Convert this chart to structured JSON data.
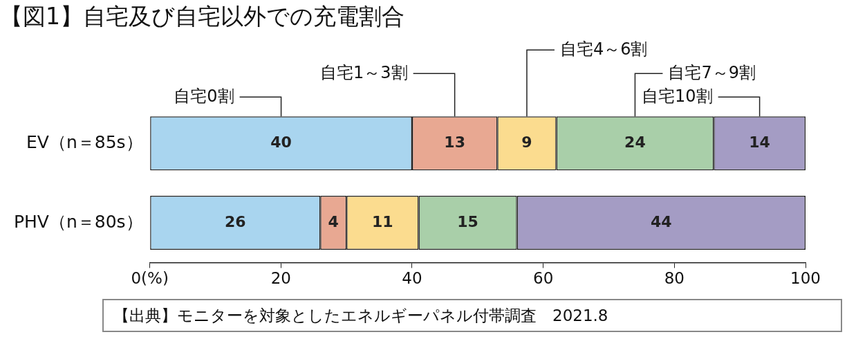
{
  "chart_data": {
    "type": "bar",
    "orientation": "horizontal",
    "stacked": true,
    "title": "【図1】自宅及び自宅以外での充電割合",
    "categories": [
      "EV（n＝85s）",
      "PHV（n＝80s）"
    ],
    "series": [
      {
        "name": "自宅0割",
        "color": "#a9d5ef",
        "values": [
          40,
          26
        ]
      },
      {
        "name": "自宅1～3割",
        "color": "#e8a892",
        "values": [
          13,
          4
        ]
      },
      {
        "name": "自宅4～6割",
        "color": "#fbdc8f",
        "values": [
          9,
          11
        ]
      },
      {
        "name": "自宅7～9割",
        "color": "#a9cfa9",
        "values": [
          24,
          15
        ]
      },
      {
        "name": "自宅10割",
        "color": "#a49cc4",
        "values": [
          14,
          44
        ]
      }
    ],
    "xlim": [
      0,
      100
    ],
    "xticks": [
      {
        "value": 0,
        "label": "0(%)"
      },
      20,
      40,
      60,
      80,
      100
    ],
    "grid": false,
    "legend": "top",
    "data_labels": true,
    "annotations": [
      "【出典】モニターを対象としたエネルギーパネル付帯調査　2021.8"
    ]
  }
}
